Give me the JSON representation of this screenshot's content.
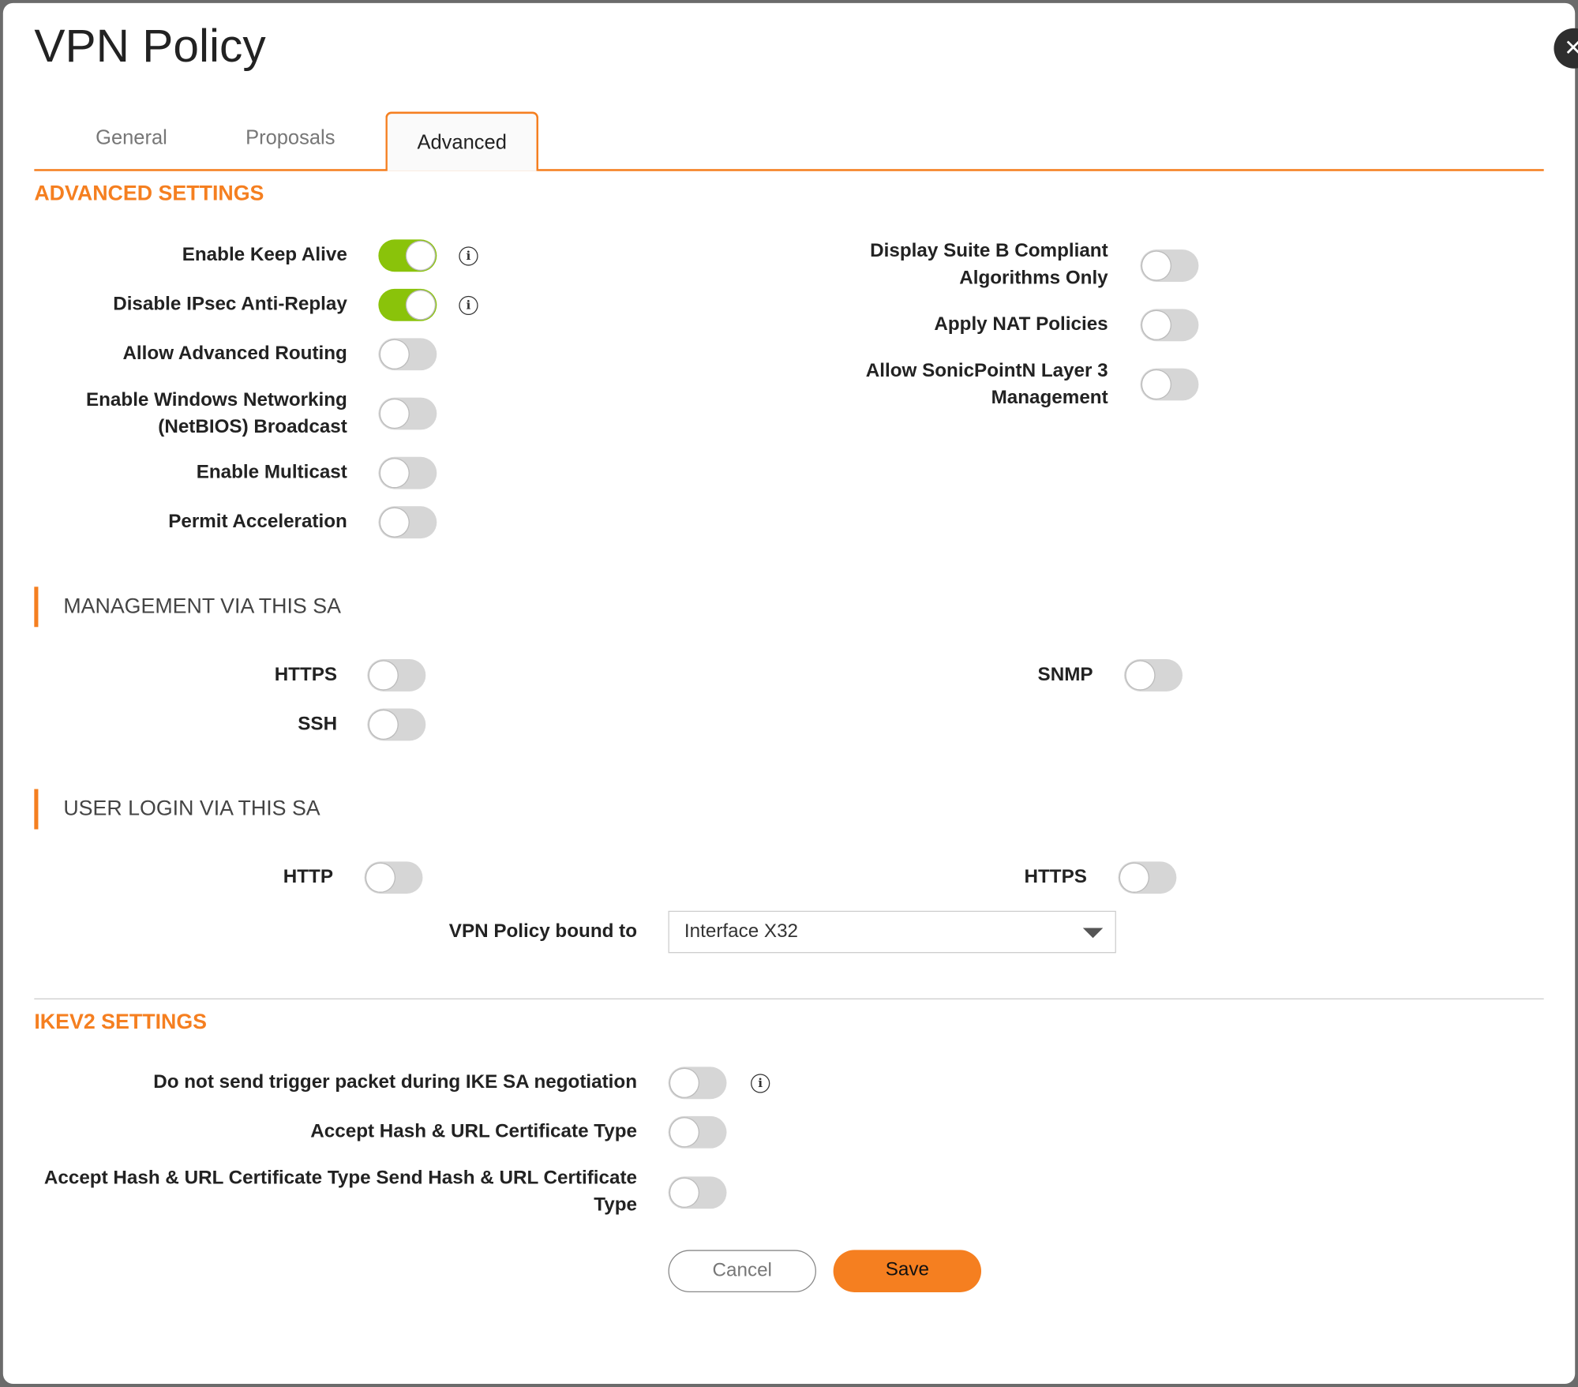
{
  "title": "VPN Policy",
  "tabs": [
    {
      "label": "General",
      "active": false
    },
    {
      "label": "Proposals",
      "active": false
    },
    {
      "label": "Advanced",
      "active": true
    }
  ],
  "advanced": {
    "heading": "ADVANCED SETTINGS",
    "left": [
      {
        "label": "Enable Keep Alive",
        "on": true,
        "info": true
      },
      {
        "label": "Disable IPsec Anti-Replay",
        "on": true,
        "info": true
      },
      {
        "label": "Allow Advanced Routing",
        "on": false
      },
      {
        "label": "Enable Windows Networking (NetBIOS) Broadcast",
        "on": false
      },
      {
        "label": "Enable Multicast",
        "on": false
      },
      {
        "label": "Permit Acceleration",
        "on": false
      }
    ],
    "right": [
      {
        "label": "Display Suite B Compliant Algorithms Only",
        "on": false
      },
      {
        "label": "Apply NAT Policies",
        "on": false
      },
      {
        "label": "Allow SonicPointN Layer 3 Management",
        "on": false
      }
    ]
  },
  "management": {
    "heading": "MANAGEMENT VIA THIS SA",
    "https": {
      "label": "HTTPS",
      "on": false
    },
    "ssh": {
      "label": "SSH",
      "on": false
    },
    "snmp": {
      "label": "SNMP",
      "on": false
    }
  },
  "user_login": {
    "heading": "USER LOGIN VIA THIS SA",
    "http": {
      "label": "HTTP",
      "on": false
    },
    "https": {
      "label": "HTTPS",
      "on": false
    }
  },
  "bound_to": {
    "label": "VPN Policy bound to",
    "value": "Interface X32"
  },
  "ikev2": {
    "heading": "IKEV2 SETTINGS",
    "items": [
      {
        "label": "Do not send trigger packet during IKE SA negotiation",
        "on": false,
        "info": true
      },
      {
        "label": "Accept Hash & URL Certificate Type",
        "on": false
      },
      {
        "label": "Accept Hash & URL Certificate Type Send Hash & URL Certificate Type",
        "on": false
      }
    ]
  },
  "buttons": {
    "cancel": "Cancel",
    "save": "Save"
  },
  "colors": {
    "accent": "#f57f20",
    "toggle_on": "#8ac30a",
    "toggle_off": "#d6d6d6"
  },
  "icons": {
    "info": "info-circle-icon",
    "close": "close-icon",
    "dropdown": "caret-down-icon"
  }
}
